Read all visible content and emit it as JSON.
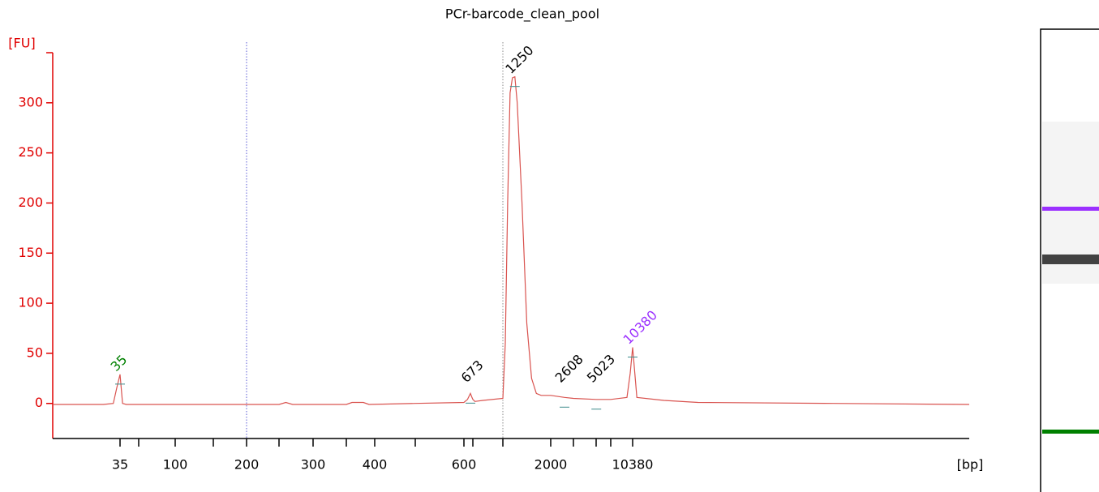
{
  "chart_data": {
    "type": "line",
    "title": "PCr-barcode_clean_pool",
    "ylabel": "[FU]",
    "xlabel": "[bp]",
    "color": "#d9534f",
    "axis_color": "#e00000",
    "x": [
      15,
      30,
      33,
      34,
      35,
      36,
      37,
      40,
      100,
      200,
      250,
      260,
      270,
      350,
      360,
      380,
      390,
      500,
      600,
      640,
      673,
      690,
      700,
      720,
      800,
      1000,
      1050,
      1100,
      1150,
      1200,
      1250,
      1300,
      1400,
      1500,
      1600,
      1700,
      1800,
      2000,
      2608,
      3000,
      5000,
      7000,
      9500,
      10000,
      10380,
      10700,
      11000,
      15000,
      20000,
      40000,
      60000
    ],
    "values": [
      -1,
      -1,
      0,
      15,
      29,
      15,
      0,
      -1,
      -1,
      -1,
      -1,
      1,
      -1,
      -1,
      1,
      1,
      -1,
      0,
      1,
      4,
      10,
      6,
      4,
      2,
      3,
      5,
      60,
      200,
      310,
      325,
      326,
      300,
      200,
      80,
      25,
      10,
      8,
      8,
      6,
      5,
      4,
      4,
      6,
      30,
      56,
      30,
      6,
      3,
      1,
      0,
      -1
    ],
    "xlim": [
      15,
      60000
    ],
    "xticks": [
      35,
      100,
      200,
      300,
      400,
      600,
      2000,
      10380
    ],
    "xminorticks": [
      50,
      150,
      250,
      350,
      500,
      700,
      1000,
      3000,
      5000,
      7000
    ],
    "ylim": [
      -35,
      350
    ],
    "yticks": [
      0,
      50,
      100,
      150,
      200,
      250,
      300
    ],
    "region_lines": [
      200,
      1000
    ],
    "peaks": [
      {
        "bp": 35,
        "fu": 29,
        "color": "#008000"
      },
      {
        "bp": 673,
        "fu": 10,
        "color": "#000000"
      },
      {
        "bp": 1250,
        "fu": 326,
        "color": "#000000"
      },
      {
        "bp": 2608,
        "fu": 6,
        "color": "#000000"
      },
      {
        "bp": 5023,
        "fu": 4,
        "color": "#000000"
      },
      {
        "bp": 10380,
        "fu": 56,
        "color": "#9b30ff"
      }
    ]
  }
}
